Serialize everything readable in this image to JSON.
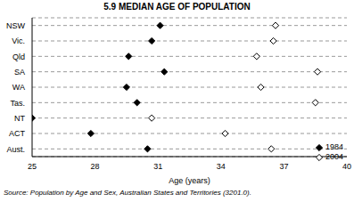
{
  "chart_data": {
    "type": "scatter",
    "title": "5.9 MEDIAN AGE OF POPULATION",
    "categories": [
      "NSW",
      "Vic.",
      "Qld",
      "SA",
      "WA",
      "Tas.",
      "NT",
      "ACT",
      "Aust."
    ],
    "series": [
      {
        "name": "1984",
        "color": "#000000",
        "marker": "filled_diamond",
        "values": [
          31.1,
          30.7,
          29.6,
          31.3,
          29.5,
          30.0,
          25.0,
          27.8,
          30.5
        ]
      },
      {
        "name": "2004",
        "color": "#000000",
        "marker": "open_diamond",
        "values": [
          36.6,
          36.5,
          35.7,
          38.6,
          35.9,
          38.5,
          30.7,
          34.2,
          36.4
        ]
      }
    ],
    "x_label": "Age (years)",
    "xlim": [
      25,
      40
    ],
    "xticks": [
      25,
      28,
      31,
      34,
      37,
      40
    ],
    "grid": true,
    "legend": "lower right",
    "source": "Source: Population by Age and Sex, Australian States and Territories (3201.0)."
  }
}
